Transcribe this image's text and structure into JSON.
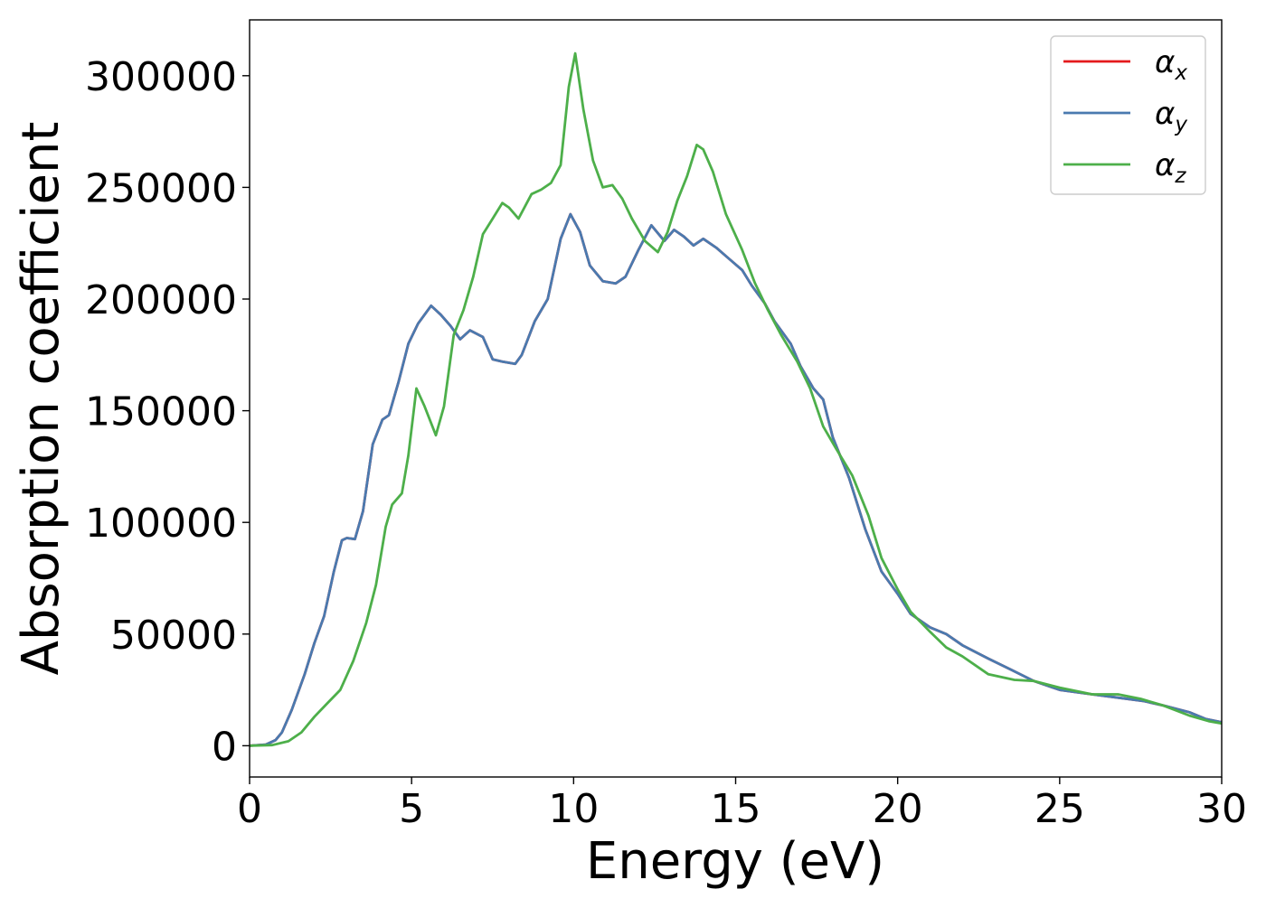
{
  "chart_data": {
    "type": "line",
    "title": "",
    "xlabel": "Energy (eV)",
    "ylabel": "Absorption coefficient",
    "xlim": [
      0,
      30
    ],
    "ylim": [
      -14000,
      325000
    ],
    "grid": false,
    "legend_position": "top-right",
    "x_ticks": [
      0,
      5,
      10,
      15,
      20,
      25,
      30
    ],
    "x_tick_labels": [
      "0",
      "5",
      "10",
      "15",
      "20",
      "25",
      "30"
    ],
    "y_ticks": [
      0,
      50000,
      100000,
      150000,
      200000,
      250000,
      300000
    ],
    "y_tick_labels": [
      "0",
      "50000",
      "100000",
      "150000",
      "200000",
      "250000",
      "300000"
    ],
    "series": [
      {
        "name": "α",
        "subscript": "x",
        "color": "#e41a1c",
        "points": [
          [
            0,
            0
          ],
          [
            0.5,
            500
          ],
          [
            0.8,
            2500
          ],
          [
            1.0,
            6000
          ],
          [
            1.3,
            16000
          ],
          [
            1.7,
            32000
          ],
          [
            2.0,
            46000
          ],
          [
            2.3,
            58000
          ],
          [
            2.6,
            78000
          ],
          [
            2.85,
            92000
          ],
          [
            3.0,
            93000
          ],
          [
            3.25,
            92500
          ],
          [
            3.5,
            105000
          ],
          [
            3.8,
            135000
          ],
          [
            4.1,
            146000
          ],
          [
            4.3,
            148000
          ],
          [
            4.6,
            163000
          ],
          [
            4.9,
            180000
          ],
          [
            5.2,
            189000
          ],
          [
            5.6,
            197000
          ],
          [
            5.9,
            193000
          ],
          [
            6.2,
            188000
          ],
          [
            6.5,
            182000
          ],
          [
            6.8,
            186000
          ],
          [
            7.2,
            183000
          ],
          [
            7.5,
            173000
          ],
          [
            7.8,
            172000
          ],
          [
            8.2,
            171000
          ],
          [
            8.4,
            175000
          ],
          [
            8.8,
            190000
          ],
          [
            9.2,
            200000
          ],
          [
            9.6,
            227000
          ],
          [
            9.9,
            238000
          ],
          [
            10.2,
            230000
          ],
          [
            10.5,
            215000
          ],
          [
            10.9,
            208000
          ],
          [
            11.3,
            207000
          ],
          [
            11.6,
            210000
          ],
          [
            12.0,
            222000
          ],
          [
            12.4,
            233000
          ],
          [
            12.8,
            226000
          ],
          [
            13.1,
            231000
          ],
          [
            13.4,
            228000
          ],
          [
            13.7,
            224000
          ],
          [
            14.0,
            227000
          ],
          [
            14.4,
            223000
          ],
          [
            14.8,
            218000
          ],
          [
            15.2,
            213000
          ],
          [
            15.5,
            206000
          ],
          [
            15.9,
            198000
          ],
          [
            16.2,
            190000
          ],
          [
            16.7,
            180000
          ],
          [
            17.0,
            170000
          ],
          [
            17.4,
            160000
          ],
          [
            17.7,
            155000
          ],
          [
            18.0,
            138000
          ],
          [
            18.5,
            120000
          ],
          [
            19.0,
            97000
          ],
          [
            19.5,
            78000
          ],
          [
            20.0,
            68000
          ],
          [
            20.4,
            59000
          ],
          [
            21.0,
            53000
          ],
          [
            21.5,
            50000
          ],
          [
            22.0,
            45000
          ],
          [
            22.8,
            39000
          ],
          [
            23.5,
            34000
          ],
          [
            24.2,
            29000
          ],
          [
            25.0,
            25000
          ],
          [
            26.0,
            23000
          ],
          [
            26.8,
            21500
          ],
          [
            27.6,
            20000
          ],
          [
            28.2,
            18000
          ],
          [
            29.0,
            15000
          ],
          [
            29.5,
            12000
          ],
          [
            30.0,
            10500
          ]
        ]
      },
      {
        "name": "α",
        "subscript": "y",
        "color": "#4a7aaf",
        "points": [
          [
            0,
            0
          ],
          [
            0.5,
            500
          ],
          [
            0.8,
            2500
          ],
          [
            1.0,
            6000
          ],
          [
            1.3,
            16000
          ],
          [
            1.7,
            32000
          ],
          [
            2.0,
            46000
          ],
          [
            2.3,
            58000
          ],
          [
            2.6,
            78000
          ],
          [
            2.85,
            92000
          ],
          [
            3.0,
            93000
          ],
          [
            3.25,
            92500
          ],
          [
            3.5,
            105000
          ],
          [
            3.8,
            135000
          ],
          [
            4.1,
            146000
          ],
          [
            4.3,
            148000
          ],
          [
            4.6,
            163000
          ],
          [
            4.9,
            180000
          ],
          [
            5.2,
            189000
          ],
          [
            5.6,
            197000
          ],
          [
            5.9,
            193000
          ],
          [
            6.2,
            188000
          ],
          [
            6.5,
            182000
          ],
          [
            6.8,
            186000
          ],
          [
            7.2,
            183000
          ],
          [
            7.5,
            173000
          ],
          [
            7.8,
            172000
          ],
          [
            8.2,
            171000
          ],
          [
            8.4,
            175000
          ],
          [
            8.8,
            190000
          ],
          [
            9.2,
            200000
          ],
          [
            9.6,
            227000
          ],
          [
            9.9,
            238000
          ],
          [
            10.2,
            230000
          ],
          [
            10.5,
            215000
          ],
          [
            10.9,
            208000
          ],
          [
            11.3,
            207000
          ],
          [
            11.6,
            210000
          ],
          [
            12.0,
            222000
          ],
          [
            12.4,
            233000
          ],
          [
            12.8,
            226000
          ],
          [
            13.1,
            231000
          ],
          [
            13.4,
            228000
          ],
          [
            13.7,
            224000
          ],
          [
            14.0,
            227000
          ],
          [
            14.4,
            223000
          ],
          [
            14.8,
            218000
          ],
          [
            15.2,
            213000
          ],
          [
            15.5,
            206000
          ],
          [
            15.9,
            198000
          ],
          [
            16.2,
            190000
          ],
          [
            16.7,
            180000
          ],
          [
            17.0,
            170000
          ],
          [
            17.4,
            160000
          ],
          [
            17.7,
            155000
          ],
          [
            18.0,
            138000
          ],
          [
            18.5,
            120000
          ],
          [
            19.0,
            97000
          ],
          [
            19.5,
            78000
          ],
          [
            20.0,
            68000
          ],
          [
            20.4,
            59000
          ],
          [
            21.0,
            53000
          ],
          [
            21.5,
            50000
          ],
          [
            22.0,
            45000
          ],
          [
            22.8,
            39000
          ],
          [
            23.5,
            34000
          ],
          [
            24.2,
            29000
          ],
          [
            25.0,
            25000
          ],
          [
            26.0,
            23000
          ],
          [
            26.8,
            21500
          ],
          [
            27.6,
            20000
          ],
          [
            28.2,
            18000
          ],
          [
            29.0,
            15000
          ],
          [
            29.5,
            12000
          ],
          [
            30.0,
            10500
          ]
        ]
      },
      {
        "name": "α",
        "subscript": "z",
        "color": "#4daf4a",
        "points": [
          [
            0,
            0
          ],
          [
            0.7,
            300
          ],
          [
            1.2,
            2000
          ],
          [
            1.6,
            6000
          ],
          [
            2.0,
            13000
          ],
          [
            2.4,
            19000
          ],
          [
            2.8,
            25000
          ],
          [
            3.2,
            38000
          ],
          [
            3.6,
            55000
          ],
          [
            3.9,
            72000
          ],
          [
            4.2,
            98000
          ],
          [
            4.4,
            108000
          ],
          [
            4.7,
            113000
          ],
          [
            4.9,
            130000
          ],
          [
            5.15,
            160000
          ],
          [
            5.4,
            152000
          ],
          [
            5.75,
            139000
          ],
          [
            6.0,
            152000
          ],
          [
            6.3,
            184000
          ],
          [
            6.6,
            195000
          ],
          [
            6.9,
            210000
          ],
          [
            7.2,
            229000
          ],
          [
            7.5,
            236000
          ],
          [
            7.8,
            243000
          ],
          [
            8.0,
            241000
          ],
          [
            8.3,
            236000
          ],
          [
            8.7,
            247000
          ],
          [
            9.0,
            249000
          ],
          [
            9.3,
            252000
          ],
          [
            9.6,
            260000
          ],
          [
            9.85,
            295000
          ],
          [
            10.05,
            310000
          ],
          [
            10.3,
            285000
          ],
          [
            10.6,
            262000
          ],
          [
            10.9,
            250000
          ],
          [
            11.2,
            251000
          ],
          [
            11.5,
            245000
          ],
          [
            11.8,
            236000
          ],
          [
            12.2,
            226000
          ],
          [
            12.6,
            221000
          ],
          [
            12.9,
            230000
          ],
          [
            13.2,
            244000
          ],
          [
            13.5,
            255000
          ],
          [
            13.8,
            269000
          ],
          [
            14.0,
            267000
          ],
          [
            14.3,
            257000
          ],
          [
            14.7,
            238000
          ],
          [
            15.2,
            222000
          ],
          [
            15.6,
            207000
          ],
          [
            16.0,
            195000
          ],
          [
            16.4,
            184000
          ],
          [
            16.9,
            172000
          ],
          [
            17.3,
            160000
          ],
          [
            17.7,
            143000
          ],
          [
            18.1,
            133000
          ],
          [
            18.6,
            121000
          ],
          [
            19.1,
            103000
          ],
          [
            19.5,
            84000
          ],
          [
            20.0,
            70000
          ],
          [
            20.4,
            60000
          ],
          [
            21.0,
            51000
          ],
          [
            21.5,
            44000
          ],
          [
            22.0,
            40000
          ],
          [
            22.8,
            32000
          ],
          [
            23.6,
            29500
          ],
          [
            24.2,
            29000
          ],
          [
            25.0,
            26000
          ],
          [
            26.0,
            23000
          ],
          [
            26.8,
            23000
          ],
          [
            27.5,
            21000
          ],
          [
            28.2,
            18000
          ],
          [
            29.0,
            13500
          ],
          [
            29.6,
            11000
          ],
          [
            30.0,
            10000
          ]
        ]
      }
    ]
  }
}
